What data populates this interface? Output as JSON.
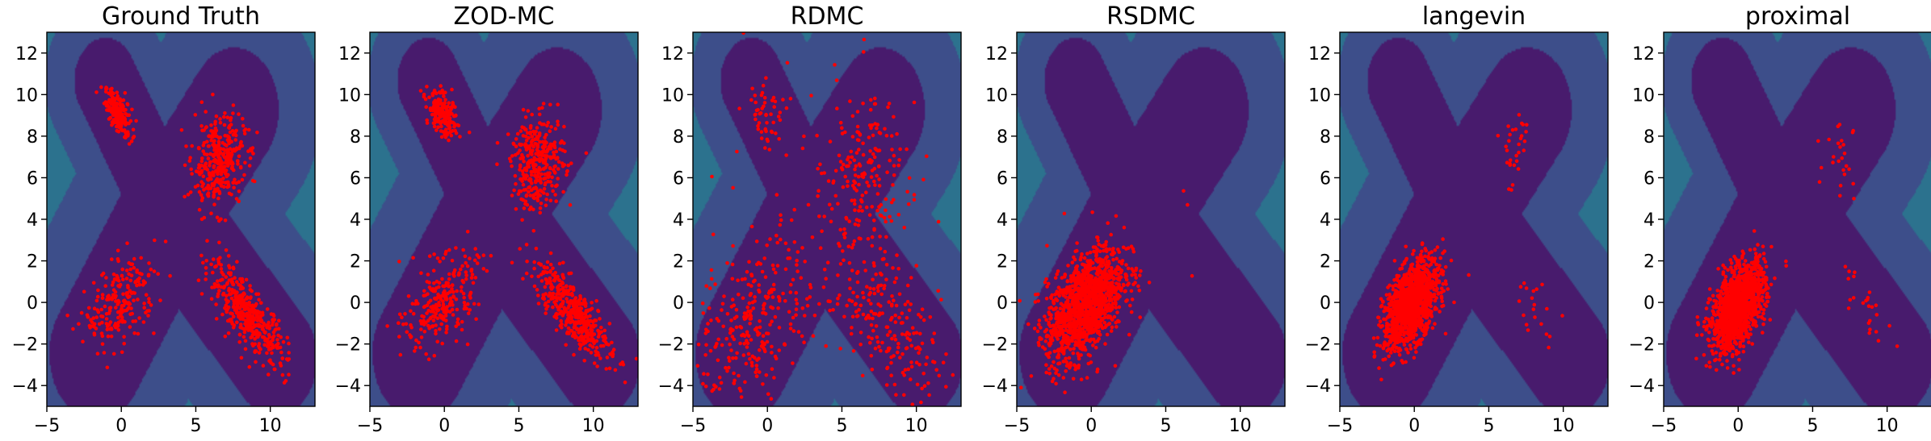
{
  "chart_data": [
    {
      "type": "scatter",
      "title": "Ground Truth",
      "xlim": [
        -5,
        13
      ],
      "ylim": [
        -5,
        13
      ],
      "xticks": [
        -5,
        0,
        5,
        10
      ],
      "yticks": [
        -4,
        -2,
        0,
        2,
        4,
        6,
        8,
        10,
        12
      ],
      "background": "contour",
      "series": [
        {
          "color": "#ff0000",
          "clusters": [
            {
              "center": [
                -0.2,
                9.1
              ],
              "std": [
                0.45,
                0.55
              ],
              "rho": -0.6,
              "count": 200
            },
            {
              "center": [
                6.5,
                6.8
              ],
              "std": [
                0.9,
                1.1
              ],
              "rho": 0.1,
              "count": 340
            },
            {
              "center": [
                8.5,
                -0.6
              ],
              "std": [
                1.3,
                1.2
              ],
              "rho": -0.8,
              "count": 420
            },
            {
              "center": [
                0.0,
                0.0
              ],
              "std": [
                1.2,
                1.1
              ],
              "rho": 0.45,
              "count": 220
            }
          ]
        }
      ]
    },
    {
      "type": "scatter",
      "title": "ZOD-MC",
      "xlim": [
        -5,
        13
      ],
      "ylim": [
        -5,
        13
      ],
      "xticks": [
        -5,
        0,
        5,
        10
      ],
      "yticks": [
        -4,
        -2,
        0,
        2,
        4,
        6,
        8,
        10,
        12
      ],
      "background": "contour",
      "series": [
        {
          "color": "#ff0000",
          "clusters": [
            {
              "center": [
                -0.1,
                9.0
              ],
              "std": [
                0.5,
                0.55
              ],
              "rho": -0.5,
              "count": 200
            },
            {
              "center": [
                6.3,
                6.7
              ],
              "std": [
                0.9,
                1.1
              ],
              "rho": 0.1,
              "count": 330
            },
            {
              "center": [
                8.6,
                -0.4
              ],
              "std": [
                1.3,
                1.2
              ],
              "rho": -0.8,
              "count": 420
            },
            {
              "center": [
                -0.2,
                0.0
              ],
              "std": [
                1.2,
                1.1
              ],
              "rho": 0.45,
              "count": 260
            }
          ]
        }
      ]
    },
    {
      "type": "scatter",
      "title": "RDMC",
      "xlim": [
        -5,
        13
      ],
      "ylim": [
        -5,
        13
      ],
      "xticks": [
        -5,
        0,
        5,
        10
      ],
      "yticks": [
        -4,
        -2,
        0,
        2,
        4,
        6,
        8,
        10,
        12
      ],
      "background": "contour",
      "series": [
        {
          "color": "#ff0000",
          "clusters": [
            {
              "center": [
                0.0,
                9.0
              ],
              "std": [
                0.7,
                0.8
              ],
              "rho": -0.4,
              "count": 50
            },
            {
              "center": [
                6.3,
                5.8
              ],
              "std": [
                1.6,
                2.0
              ],
              "rho": 0.1,
              "count": 200
            },
            {
              "center": [
                8.0,
                -0.8
              ],
              "std": [
                1.8,
                1.8
              ],
              "rho": -0.6,
              "count": 200
            },
            {
              "center": [
                -0.8,
                -0.8
              ],
              "std": [
                2.0,
                2.0
              ],
              "rho": 0.4,
              "count": 280
            },
            {
              "center": [
                4.0,
                4.0
              ],
              "std": [
                5.0,
                5.0
              ],
              "rho": 0.0,
              "count": 40
            }
          ]
        }
      ]
    },
    {
      "type": "scatter",
      "title": "RSDMC",
      "xlim": [
        -5,
        13
      ],
      "ylim": [
        -5,
        13
      ],
      "xticks": [
        -5,
        0,
        5,
        10
      ],
      "yticks": [
        -4,
        -2,
        0,
        2,
        4,
        6,
        8,
        10,
        12
      ],
      "background": "contour",
      "series": [
        {
          "color": "#ff0000",
          "clusters": [
            {
              "center": [
                -0.4,
                -0.1
              ],
              "std": [
                1.3,
                1.35
              ],
              "rho": 0.5,
              "count": 1300
            },
            {
              "center": [
                1.0,
                1.0
              ],
              "std": [
                4.0,
                4.0
              ],
              "rho": 0.0,
              "count": 15
            }
          ]
        }
      ]
    },
    {
      "type": "scatter",
      "title": "langevin",
      "xlim": [
        -5,
        13
      ],
      "ylim": [
        -5,
        13
      ],
      "xticks": [
        -5,
        0,
        5,
        10
      ],
      "yticks": [
        -4,
        -2,
        0,
        2,
        4,
        6,
        8,
        10,
        12
      ],
      "background": "contour",
      "series": [
        {
          "color": "#ff0000",
          "clusters": [
            {
              "center": [
                -0.2,
                -0.1
              ],
              "std": [
                0.9,
                1.05
              ],
              "rho": 0.5,
              "count": 1300
            },
            {
              "center": [
                6.8,
                7.5
              ],
              "std": [
                0.6,
                1.0
              ],
              "rho": 0.0,
              "count": 30
            },
            {
              "center": [
                8.0,
                -0.3
              ],
              "std": [
                0.8,
                0.9
              ],
              "rho": -0.6,
              "count": 20
            }
          ]
        }
      ]
    },
    {
      "type": "scatter",
      "title": "proximal",
      "xlim": [
        -5,
        13
      ],
      "ylim": [
        -5,
        13
      ],
      "xticks": [
        -5,
        0,
        5,
        10
      ],
      "yticks": [
        -4,
        -2,
        0,
        2,
        4,
        6,
        8,
        10,
        12
      ],
      "background": "contour",
      "series": [
        {
          "color": "#ff0000",
          "clusters": [
            {
              "center": [
                0.0,
                -0.2
              ],
              "std": [
                0.9,
                1.05
              ],
              "rho": 0.5,
              "count": 1300
            },
            {
              "center": [
                7.0,
                7.2
              ],
              "std": [
                0.6,
                1.1
              ],
              "rho": 0.0,
              "count": 25
            },
            {
              "center": [
                8.5,
                0.2
              ],
              "std": [
                0.8,
                0.9
              ],
              "rho": -0.6,
              "count": 25
            }
          ]
        }
      ]
    }
  ],
  "contour_colors": [
    "#481b6d",
    "#3d4e8a",
    "#2c728e",
    "#21918c",
    "#2ab07f",
    "#5ec962",
    "#addc30",
    "#fde725"
  ]
}
